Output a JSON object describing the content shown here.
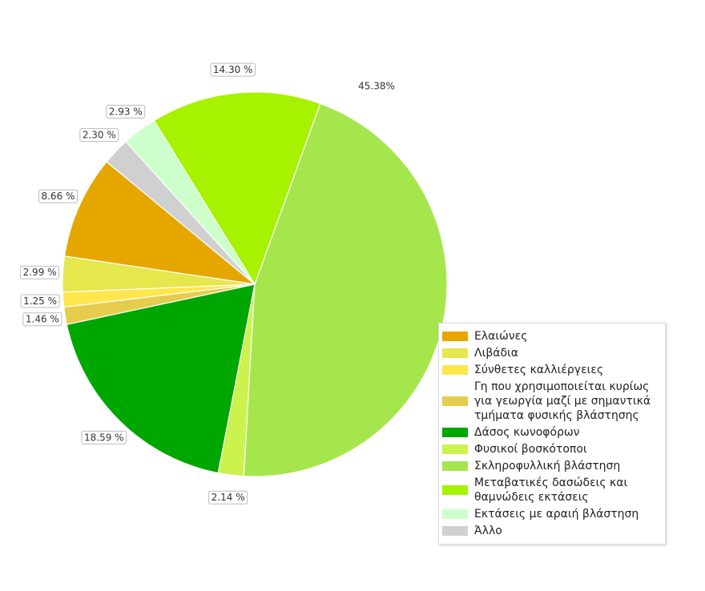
{
  "chart_data": {
    "type": "pie",
    "categories": [
      "Ελαιώνες",
      "Λιβάδια",
      "Σύνθετες καλλιέργειες",
      "Γη που χρησιμοποιείται κυρίως\nγια γεωργία μαζί με σημαντικά\nτμήματα φυσικής βλάστησης",
      "Δάσος κωνοφόρων",
      "Φυσικοί βοσκότοποι",
      "Σκληροφυλλική βλάστηση",
      "Μεταβατικές δασώδεις και\nθαμνώδεις εκτάσεις",
      "Εκτάσεις με αραιή βλάστηση",
      "Άλλο"
    ],
    "values": [
      8.66,
      2.99,
      1.25,
      1.46,
      18.59,
      2.14,
      45.38,
      14.3,
      2.93,
      2.3
    ],
    "value_labels": [
      "8.66 %",
      "2.99 %",
      "1.25 %",
      "1.46 %",
      "18.59 %",
      "2.14 %",
      "45.38%",
      "14.30 %",
      "2.93 %",
      "2.30 %"
    ],
    "colors": [
      "#e6a600",
      "#e6e64d",
      "#ffe64d",
      "#e6cc4d",
      "#00a600",
      "#ccf24d",
      "#a6e64d",
      "#a6f200",
      "#ccffcc",
      "#d0d0d0"
    ],
    "legend": "lower right"
  }
}
